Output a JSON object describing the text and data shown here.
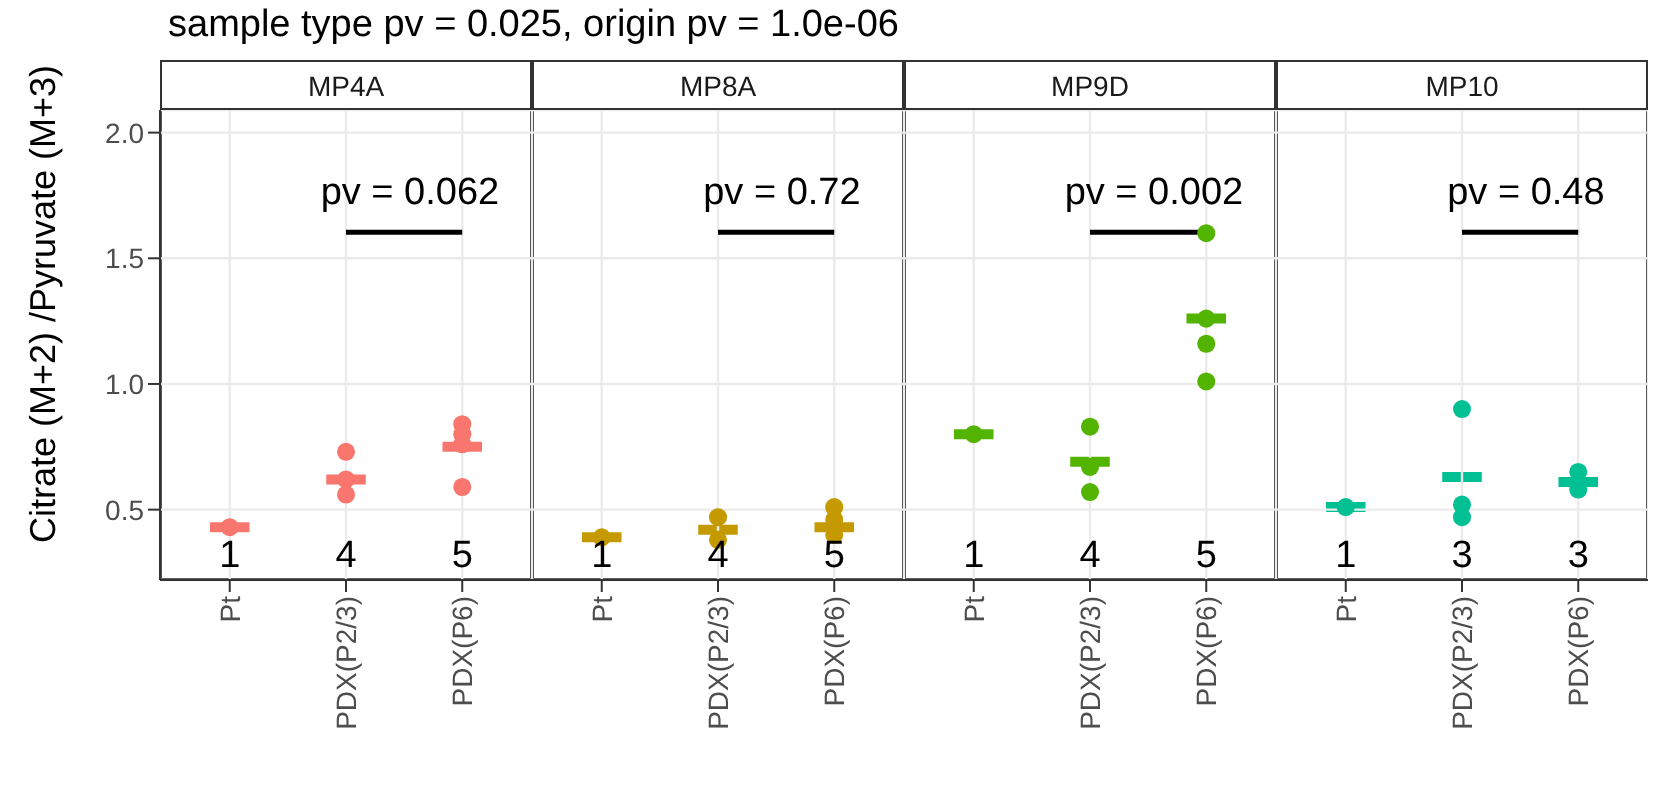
{
  "chart_data": [
    {
      "type": "scatter",
      "subtitle": "sample type pv = 0.025, origin pv = 1.0e-06",
      "title": "MP4A",
      "ylabel": "Citrate (M+2) /Pyruvate (M+3)",
      "categories": [
        "Pt",
        "PDX(P2/3)",
        "PDX(P6)"
      ],
      "ylim": [
        0.22,
        2.09
      ],
      "yticks": [
        0.5,
        {
          "value": 1,
          "label": "1.0"
        },
        1.5,
        {
          "value": 2,
          "label": "2.0"
        }
      ],
      "grid": true,
      "marker": "circle",
      "legend": false,
      "series": [
        {
          "type": "scatter",
          "color": "#f8766d",
          "x": [
            "Pt",
            "PDX(P2/3)",
            "PDX(P2/3)",
            "PDX(P2/3)",
            "PDX(P2/3)",
            "PDX(P6)",
            "PDX(P6)",
            "PDX(P6)",
            "PDX(P6)",
            "PDX(P6)"
          ],
          "values": [
            0.43,
            0.73,
            0.62,
            null,
            0.56,
            0.84,
            0.8,
            0.76,
            null,
            0.59
          ]
        },
        {
          "type": "box",
          "color": "#f8766d",
          "boxes": [
            {
              "low": 0.43,
              "q1": 0.43,
              "median": 0.43,
              "q3": 0.43,
              "high": 0.43
            },
            {
              "low": 0.62,
              "q1": 0.62,
              "median": 0.62,
              "q3": 0.62,
              "high": 0.62
            },
            {
              "low": 0.75,
              "q1": 0.75,
              "median": 0.75,
              "q3": 0.75,
              "high": 0.75
            }
          ]
        }
      ],
      "annotations": [
        "pv = 0.062",
        "1",
        "4",
        "5"
      ]
    },
    {
      "type": "scatter",
      "title": "MP8A",
      "categories": [
        "Pt",
        "PDX(P2/3)",
        "PDX(P6)"
      ],
      "ylim": [
        0.22,
        2.09
      ],
      "yticks": [
        0.5,
        1,
        1.5,
        2
      ],
      "tick_labels": "x",
      "grid": true,
      "marker": "circle",
      "legend": false,
      "series": [
        {
          "type": "scatter",
          "color": "#c49a00",
          "x": [
            "Pt",
            "PDX(P2/3)",
            "PDX(P2/3)",
            "PDX(P2/3)",
            "PDX(P2/3)",
            "PDX(P6)",
            "PDX(P6)",
            "PDX(P6)",
            "PDX(P6)",
            "PDX(P6)"
          ],
          "values": [
            0.39,
            0.47,
            null,
            null,
            0.38,
            0.51,
            0.46,
            null,
            null,
            0.4
          ]
        },
        {
          "type": "box",
          "color": "#c49a00",
          "boxes": [
            {
              "low": 0.39,
              "q1": 0.39,
              "median": 0.39,
              "q3": 0.39,
              "high": 0.39
            },
            {
              "low": 0.42,
              "q1": 0.42,
              "median": 0.42,
              "q3": 0.42,
              "high": 0.42
            },
            {
              "low": 0.43,
              "q1": 0.43,
              "median": 0.43,
              "q3": 0.43,
              "high": 0.43
            }
          ]
        }
      ],
      "annotations": [
        "pv = 0.72",
        "1",
        "4",
        "5"
      ]
    },
    {
      "type": "scatter",
      "title": "MP9D",
      "categories": [
        "Pt",
        "PDX(P2/3)",
        "PDX(P6)"
      ],
      "ylim": [
        0.22,
        2.09
      ],
      "yticks": [
        0.5,
        1,
        1.5,
        2
      ],
      "tick_labels": "x",
      "grid": true,
      "marker": "circle",
      "legend": false,
      "series": [
        {
          "type": "scatter",
          "color": "#53b400",
          "x": [
            "Pt",
            "PDX(P2/3)",
            "PDX(P2/3)",
            "PDX(P2/3)",
            "PDX(P2/3)",
            "PDX(P6)",
            "PDX(P6)",
            "PDX(P6)",
            "PDX(P6)",
            "PDX(P6)"
          ],
          "values": [
            0.8,
            0.83,
            null,
            0.67,
            0.57,
            1.6,
            null,
            1.26,
            1.16,
            1.01
          ]
        },
        {
          "type": "box",
          "color": "#53b400",
          "boxes": [
            {
              "low": 0.8,
              "q1": 0.8,
              "median": 0.8,
              "q3": 0.8,
              "high": 0.8
            },
            {
              "low": 0.69,
              "q1": 0.69,
              "median": 0.69,
              "q3": 0.69,
              "high": 0.69
            },
            {
              "low": 1.26,
              "q1": 1.26,
              "median": 1.26,
              "q3": 1.26,
              "high": 1.26
            }
          ]
        }
      ],
      "annotations": [
        "pv = 0.002",
        "1",
        "4",
        "5"
      ]
    },
    {
      "type": "scatter",
      "title": "MP10",
      "categories": [
        "Pt",
        "PDX(P2/3)",
        "PDX(P6)"
      ],
      "ylim": [
        0.22,
        2.09
      ],
      "yticks": [
        0.5,
        1,
        1.5,
        2
      ],
      "tick_labels": "x",
      "grid": true,
      "marker": "circle",
      "legend": false,
      "series": [
        {
          "type": "scatter",
          "color": "#00c094",
          "x": [
            "Pt",
            "PDX(P2/3)",
            "PDX(P2/3)",
            "PDX(P2/3)",
            "PDX(P6)",
            "PDX(P6)",
            "PDX(P6)"
          ],
          "values": [
            0.51,
            0.9,
            0.52,
            0.47,
            0.65,
            null,
            0.58
          ]
        },
        {
          "type": "box",
          "color": "#00c094",
          "boxes": [
            {
              "low": 0.51,
              "q1": 0.51,
              "median": 0.51,
              "q3": 0.51,
              "high": 0.51
            },
            {
              "low": 0.63,
              "q1": 0.63,
              "median": 0.63,
              "q3": 0.63,
              "high": 0.63
            },
            {
              "low": 0.61,
              "q1": 0.61,
              "median": 0.61,
              "q3": 0.61,
              "high": 0.61
            }
          ]
        }
      ],
      "annotations": [
        "pv = 0.48",
        "1",
        "3",
        "3"
      ]
    }
  ]
}
